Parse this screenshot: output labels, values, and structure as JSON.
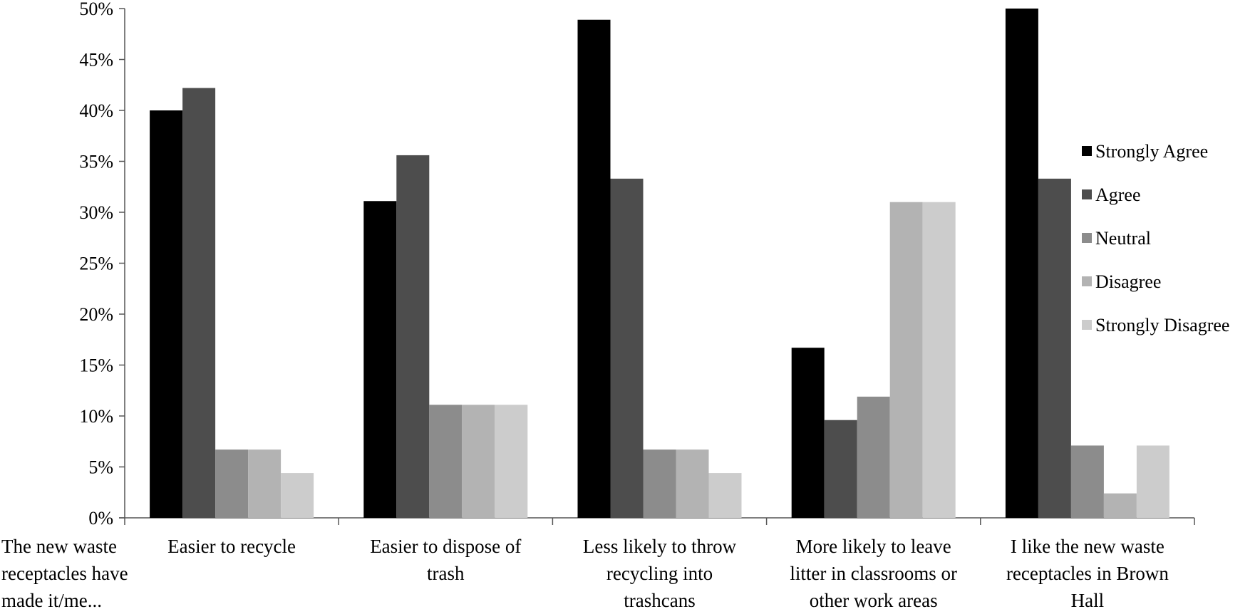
{
  "chart_data": {
    "type": "bar",
    "ylim": [
      0,
      50
    ],
    "ytick_labels": [
      "0%",
      "5%",
      "10%",
      "15%",
      "20%",
      "25%",
      "30%",
      "35%",
      "40%",
      "45%",
      "50%"
    ],
    "row_label": "The new waste receptacles have made it/me...",
    "categories": [
      "Easier to recycle",
      "Easier to dispose of trash",
      "Less likely to throw recycling into trashcans",
      "More likely to leave litter in classrooms or other work areas",
      "I like the new waste receptacles in Brown Hall"
    ],
    "series": [
      {
        "name": "Strongly Agree",
        "color": "#000000",
        "values": [
          40.0,
          31.1,
          48.9,
          16.7,
          50.0
        ]
      },
      {
        "name": "Agree",
        "color": "#4d4d4d",
        "values": [
          42.2,
          35.6,
          33.3,
          9.6,
          33.3
        ]
      },
      {
        "name": "Neutral",
        "color": "#8c8c8c",
        "values": [
          6.7,
          11.1,
          6.7,
          11.9,
          7.1
        ]
      },
      {
        "name": "Disagree",
        "color": "#b3b3b3",
        "values": [
          6.7,
          11.1,
          6.7,
          31.0,
          2.4
        ]
      },
      {
        "name": "Strongly Disagree",
        "color": "#cccccc",
        "values": [
          4.4,
          11.1,
          4.4,
          31.0,
          7.1
        ]
      }
    ],
    "legend_position": "right",
    "grid": false
  }
}
